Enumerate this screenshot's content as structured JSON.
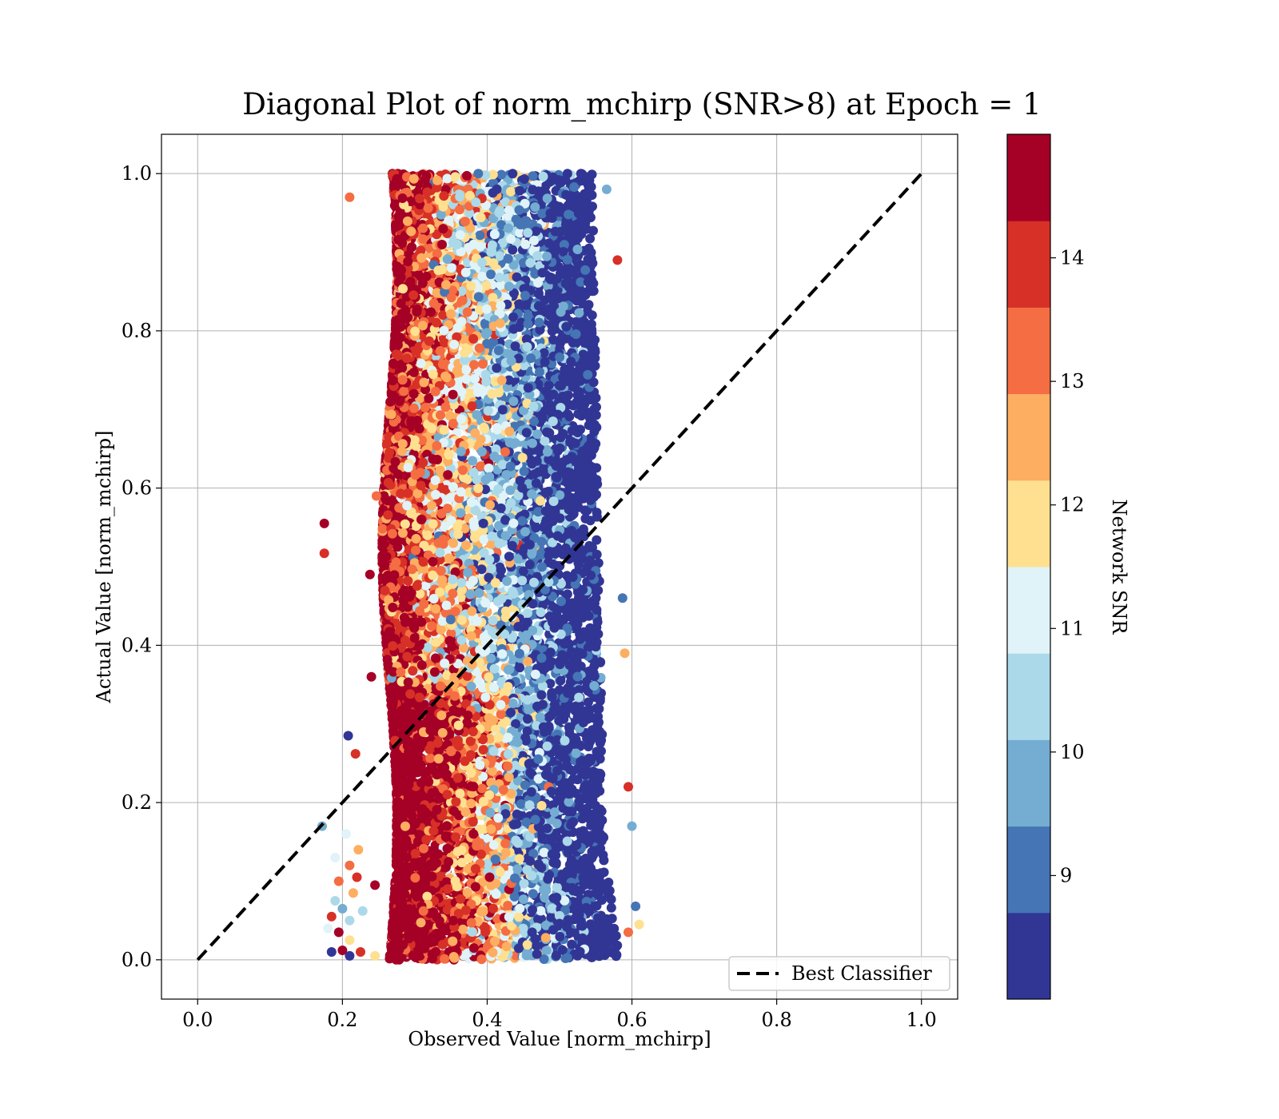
{
  "chart_data": {
    "type": "scatter",
    "title": "Diagonal Plot of norm_mchirp (SNR>8) at Epoch = 1",
    "xlabel": "Observed Value [norm_mchirp]",
    "ylabel": "Actual Value [norm_mchirp]",
    "xlim": [
      -0.05,
      1.05
    ],
    "ylim": [
      -0.05,
      1.05
    ],
    "xticks": [
      "0.0",
      "0.2",
      "0.4",
      "0.6",
      "0.8",
      "1.0"
    ],
    "yticks": [
      "0.0",
      "0.2",
      "0.4",
      "0.6",
      "0.8",
      "1.0"
    ],
    "xtick_values": [
      0.0,
      0.2,
      0.4,
      0.6,
      0.8,
      1.0
    ],
    "ytick_values": [
      0.0,
      0.2,
      0.4,
      0.6,
      0.8,
      1.0
    ],
    "grid": true,
    "legend": {
      "placement": "lower-right",
      "entries": [
        {
          "label": "Best Classifier",
          "style": "dashed",
          "color": "#000000"
        }
      ]
    },
    "reference_line": {
      "name": "Best Classifier",
      "x": [
        0.0,
        1.0
      ],
      "y": [
        0.0,
        1.0
      ]
    },
    "colorbar": {
      "label": "Network SNR",
      "range": [
        8.0,
        15.0
      ],
      "ticks": [
        "9",
        "10",
        "11",
        "12",
        "13",
        "14"
      ],
      "tick_values": [
        9,
        10,
        11,
        12,
        13,
        14
      ],
      "colors": [
        "#313695",
        "#4575b4",
        "#74add1",
        "#abd9e9",
        "#e0f3f8",
        "#fee090",
        "#fdae61",
        "#f46d43",
        "#d73027",
        "#a50026"
      ]
    },
    "series": [
      {
        "points": [
          {
            "x": 0.21,
            "y": 0.97,
            "snr": 13.2
          },
          {
            "x": 0.175,
            "y": 0.555,
            "snr": 14.5
          },
          {
            "x": 0.175,
            "y": 0.517,
            "snr": 14.2
          },
          {
            "x": 0.58,
            "y": 0.89,
            "snr": 14.1
          },
          {
            "x": 0.565,
            "y": 0.98,
            "snr": 9.8
          },
          {
            "x": 0.587,
            "y": 0.46,
            "snr": 9.1
          },
          {
            "x": 0.59,
            "y": 0.39,
            "snr": 12.6
          },
          {
            "x": 0.595,
            "y": 0.22,
            "snr": 13.9
          },
          {
            "x": 0.6,
            "y": 0.17,
            "snr": 9.7
          },
          {
            "x": 0.605,
            "y": 0.068,
            "snr": 9.2
          },
          {
            "x": 0.61,
            "y": 0.045,
            "snr": 11.7
          },
          {
            "x": 0.595,
            "y": 0.035,
            "snr": 13.0
          },
          {
            "x": 0.208,
            "y": 0.285,
            "snr": 8.4
          },
          {
            "x": 0.218,
            "y": 0.262,
            "snr": 13.9
          },
          {
            "x": 0.172,
            "y": 0.17,
            "snr": 9.4
          },
          {
            "x": 0.24,
            "y": 0.36,
            "snr": 14.6
          },
          {
            "x": 0.238,
            "y": 0.49,
            "snr": 14.7
          },
          {
            "x": 0.247,
            "y": 0.59,
            "snr": 13.4
          },
          {
            "x": 0.205,
            "y": 0.16,
            "snr": 10.9
          },
          {
            "x": 0.19,
            "y": 0.13,
            "snr": 11.2
          },
          {
            "x": 0.21,
            "y": 0.12,
            "snr": 13.5
          },
          {
            "x": 0.195,
            "y": 0.1,
            "snr": 13.3
          },
          {
            "x": 0.22,
            "y": 0.105,
            "snr": 13.8
          },
          {
            "x": 0.215,
            "y": 0.085,
            "snr": 12.4
          },
          {
            "x": 0.19,
            "y": 0.075,
            "snr": 10.4
          },
          {
            "x": 0.2,
            "y": 0.065,
            "snr": 9.8
          },
          {
            "x": 0.185,
            "y": 0.055,
            "snr": 13.9
          },
          {
            "x": 0.21,
            "y": 0.05,
            "snr": 10.2
          },
          {
            "x": 0.195,
            "y": 0.035,
            "snr": 14.4
          },
          {
            "x": 0.21,
            "y": 0.025,
            "snr": 12.2
          },
          {
            "x": 0.185,
            "y": 0.01,
            "snr": 8.3
          },
          {
            "x": 0.2,
            "y": 0.012,
            "snr": 14.6
          },
          {
            "x": 0.21,
            "y": 0.005,
            "snr": 8.5
          },
          {
            "x": 0.225,
            "y": 0.01,
            "snr": 13.7
          },
          {
            "x": 0.228,
            "y": 0.062,
            "snr": 10.6
          },
          {
            "x": 0.245,
            "y": 0.095,
            "snr": 14.6
          },
          {
            "x": 0.222,
            "y": 0.14,
            "snr": 12.8
          },
          {
            "x": 0.18,
            "y": 0.04,
            "snr": 11.3
          },
          {
            "x": 0.245,
            "y": 0.005,
            "snr": 11.5
          }
        ]
      }
    ]
  }
}
